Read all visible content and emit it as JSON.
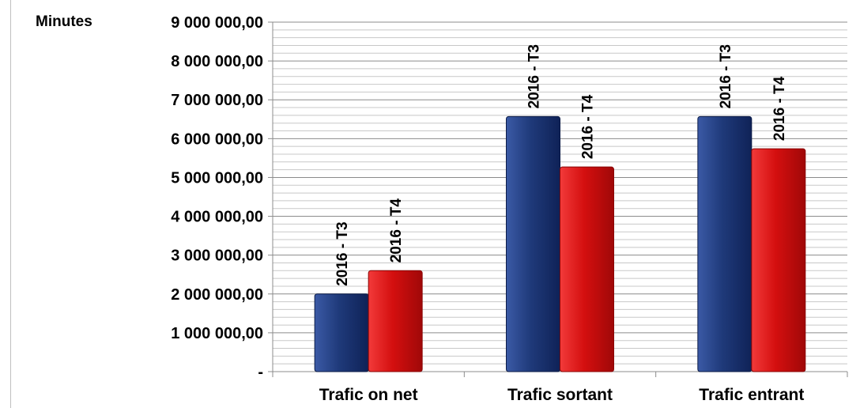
{
  "chart_data": {
    "type": "bar",
    "ylabel": "Minutes",
    "categories": [
      "Trafic on net",
      "Trafic sortant",
      "Trafic entrant"
    ],
    "series": [
      {
        "name": "2016 - T3",
        "color": "#1f3a7a",
        "values": [
          2000000,
          6570000,
          6570000
        ],
        "labels": [
          "2016 - T3",
          "2016 - T3",
          "2016 - T3"
        ]
      },
      {
        "name": "2016 - T4",
        "color": "#d40f0f",
        "values": [
          2600000,
          5270000,
          5740000
        ],
        "labels": [
          "2016 - T4",
          "2016 - T4",
          "2016 - T4"
        ]
      }
    ],
    "ylim": [
      0,
      9000000
    ],
    "y_ticks": [
      0,
      1000000,
      2000000,
      3000000,
      4000000,
      5000000,
      6000000,
      7000000,
      8000000,
      9000000
    ],
    "y_tick_labels": [
      "-",
      "1 000 000,00",
      "2 000 000,00",
      "3 000 000,00",
      "4 000 000,00",
      "5 000 000,00",
      "6 000 000,00",
      "7 000 000,00",
      "8 000 000,00",
      "9 000 000,00"
    ],
    "grid": true,
    "legend": "none"
  }
}
